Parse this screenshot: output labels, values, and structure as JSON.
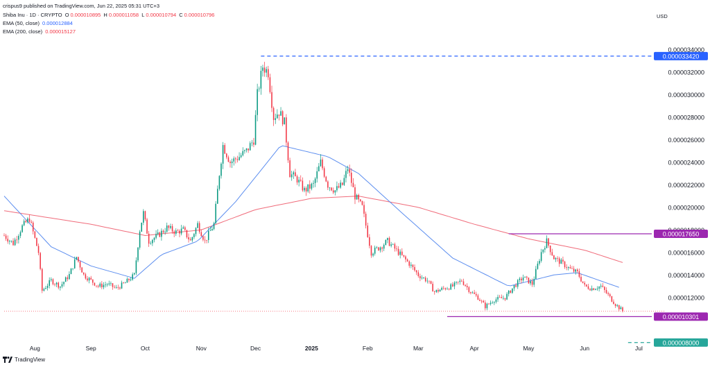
{
  "header": {
    "publisher": "crispus9 published on TradingView.com, Jun 22, 2025 05:31 UTC+3",
    "symbol": "Shiba Inu · 1D · CRYPTO",
    "ohlc": {
      "open_label": "O",
      "open": "0.000010895",
      "high_label": "H",
      "high": "0.000011058",
      "low_label": "L",
      "low": "0.000010794",
      "close_label": "C",
      "close": "0.000010796"
    },
    "ema50": {
      "label": "EMA (50, close)",
      "value": "0.000012884"
    },
    "ema200": {
      "label": "EMA (200, close)",
      "value": "0.000015127"
    },
    "currency": "USD"
  },
  "footer": {
    "brand": "TradingView"
  },
  "colors": {
    "up": "#089981",
    "down": "#f23645",
    "ema50": "#5b8def",
    "ema200": "#f06b7a",
    "level": "#9c27b0",
    "level_label_bg": "#9c27b0",
    "high_line": "#2962ff",
    "high_label_bg": "#2962ff",
    "low_line": "#26a69a",
    "low_label_bg": "#26a69a"
  },
  "chart_data": {
    "type": "candlestick",
    "title": "Shiba Inu · 1D · CRYPTO",
    "x_ticks": [
      "Aug",
      "Sep",
      "Oct",
      "Nov",
      "Dec",
      "2025",
      "Feb",
      "Mar",
      "Apr",
      "May",
      "Jun",
      "Jul"
    ],
    "x_tick_dates": [
      "2024-08-01",
      "2024-09-01",
      "2024-10-01",
      "2024-11-01",
      "2024-12-01",
      "2025-01-01",
      "2025-02-01",
      "2025-03-01",
      "2025-04-01",
      "2025-05-01",
      "2025-06-01",
      "2025-07-01"
    ],
    "y_ticks": [
      "0.000012000",
      "0.000014000",
      "0.000016000",
      "0.000018000",
      "0.000020000",
      "0.000022000",
      "0.000024000",
      "0.000026000",
      "0.000028000",
      "0.000030000",
      "0.000032000",
      "0.000034000"
    ],
    "y_tick_values": [
      1.2e-05,
      1.4e-05,
      1.6e-05,
      1.8e-05,
      2e-05,
      2.2e-05,
      2.4e-05,
      2.6e-05,
      2.8e-05,
      3e-05,
      3.2e-05,
      3.4e-05
    ],
    "ylim": [
      7.8e-06,
      3.52e-05
    ],
    "price_path": [
      [
        "2024-07-15",
        1.75e-05
      ],
      [
        "2024-07-20",
        1.68e-05
      ],
      [
        "2024-07-25",
        1.83e-05
      ],
      [
        "2024-07-29",
        1.9e-05
      ],
      [
        "2024-08-03",
        1.6e-05
      ],
      [
        "2024-08-05",
        1.26e-05
      ],
      [
        "2024-08-10",
        1.35e-05
      ],
      [
        "2024-08-15",
        1.3e-05
      ],
      [
        "2024-08-20",
        1.4e-05
      ],
      [
        "2024-08-24",
        1.56e-05
      ],
      [
        "2024-08-28",
        1.4e-05
      ],
      [
        "2024-09-05",
        1.3e-05
      ],
      [
        "2024-09-10",
        1.32e-05
      ],
      [
        "2024-09-15",
        1.28e-05
      ],
      [
        "2024-09-20",
        1.33e-05
      ],
      [
        "2024-09-25",
        1.4e-05
      ],
      [
        "2024-09-28",
        1.8e-05
      ],
      [
        "2024-09-30",
        1.95e-05
      ],
      [
        "2024-10-03",
        1.7e-05
      ],
      [
        "2024-10-08",
        1.75e-05
      ],
      [
        "2024-10-13",
        1.82e-05
      ],
      [
        "2024-10-18",
        1.78e-05
      ],
      [
        "2024-10-22",
        1.8e-05
      ],
      [
        "2024-10-26",
        1.7e-05
      ],
      [
        "2024-10-30",
        1.85e-05
      ],
      [
        "2024-11-03",
        1.7e-05
      ],
      [
        "2024-11-08",
        1.85e-05
      ],
      [
        "2024-11-11",
        2.3e-05
      ],
      [
        "2024-11-13",
        2.55e-05
      ],
      [
        "2024-11-17",
        2.4e-05
      ],
      [
        "2024-11-22",
        2.45e-05
      ],
      [
        "2024-11-26",
        2.5e-05
      ],
      [
        "2024-11-30",
        2.6e-05
      ],
      [
        "2024-12-02",
        3e-05
      ],
      [
        "2024-12-05",
        3.25e-05
      ],
      [
        "2024-12-08",
        3.2e-05
      ],
      [
        "2024-12-11",
        2.8e-05
      ],
      [
        "2024-12-14",
        2.85e-05
      ],
      [
        "2024-12-17",
        2.75e-05
      ],
      [
        "2024-12-20",
        2.3e-05
      ],
      [
        "2024-12-24",
        2.25e-05
      ],
      [
        "2024-12-28",
        2.15e-05
      ],
      [
        "2025-01-02",
        2.2e-05
      ],
      [
        "2025-01-06",
        2.4e-05
      ],
      [
        "2025-01-10",
        2.2e-05
      ],
      [
        "2025-01-14",
        2.15e-05
      ],
      [
        "2025-01-18",
        2.2e-05
      ],
      [
        "2025-01-21",
        2.35e-05
      ],
      [
        "2025-01-25",
        2.1e-05
      ],
      [
        "2025-01-29",
        2e-05
      ],
      [
        "2025-02-03",
        1.6e-05
      ],
      [
        "2025-02-08",
        1.65e-05
      ],
      [
        "2025-02-12",
        1.7e-05
      ],
      [
        "2025-02-18",
        1.6e-05
      ],
      [
        "2025-02-24",
        1.5e-05
      ],
      [
        "2025-03-01",
        1.4e-05
      ],
      [
        "2025-03-06",
        1.35e-05
      ],
      [
        "2025-03-10",
        1.25e-05
      ],
      [
        "2025-03-15",
        1.28e-05
      ],
      [
        "2025-03-20",
        1.3e-05
      ],
      [
        "2025-03-25",
        1.35e-05
      ],
      [
        "2025-03-30",
        1.25e-05
      ],
      [
        "2025-04-03",
        1.2e-05
      ],
      [
        "2025-04-07",
        1.12e-05
      ],
      [
        "2025-04-12",
        1.18e-05
      ],
      [
        "2025-04-18",
        1.2e-05
      ],
      [
        "2025-04-23",
        1.3e-05
      ],
      [
        "2025-04-28",
        1.38e-05
      ],
      [
        "2025-05-03",
        1.32e-05
      ],
      [
        "2025-05-08",
        1.6e-05
      ],
      [
        "2025-05-11",
        1.7e-05
      ],
      [
        "2025-05-15",
        1.55e-05
      ],
      [
        "2025-05-20",
        1.5e-05
      ],
      [
        "2025-05-24",
        1.45e-05
      ],
      [
        "2025-05-28",
        1.42e-05
      ],
      [
        "2025-06-01",
        1.3e-05
      ],
      [
        "2025-06-05",
        1.28e-05
      ],
      [
        "2025-06-10",
        1.3e-05
      ],
      [
        "2025-06-14",
        1.22e-05
      ],
      [
        "2025-06-18",
        1.14e-05
      ],
      [
        "2025-06-22",
        1.08e-05
      ]
    ],
    "ema50_path": [
      [
        "2024-07-15",
        2.1e-05
      ],
      [
        "2024-08-10",
        1.65e-05
      ],
      [
        "2024-09-01",
        1.48e-05
      ],
      [
        "2024-09-25",
        1.37e-05
      ],
      [
        "2024-10-10",
        1.58e-05
      ],
      [
        "2024-10-30",
        1.7e-05
      ],
      [
        "2024-11-20",
        2.05e-05
      ],
      [
        "2024-12-10",
        2.45e-05
      ],
      [
        "2024-12-15",
        2.55e-05
      ],
      [
        "2025-01-10",
        2.45e-05
      ],
      [
        "2025-01-27",
        2.3e-05
      ],
      [
        "2025-02-20",
        1.95e-05
      ],
      [
        "2025-03-20",
        1.55e-05
      ],
      [
        "2025-04-20",
        1.3e-05
      ],
      [
        "2025-05-15",
        1.4e-05
      ],
      [
        "2025-05-28",
        1.42e-05
      ],
      [
        "2025-06-20",
        1.29e-05
      ]
    ],
    "ema200_path": [
      [
        "2024-07-15",
        1.97e-05
      ],
      [
        "2024-09-01",
        1.85e-05
      ],
      [
        "2024-10-01",
        1.75e-05
      ],
      [
        "2024-11-01",
        1.8e-05
      ],
      [
        "2024-12-01",
        1.98e-05
      ],
      [
        "2025-01-01",
        2.08e-05
      ],
      [
        "2025-01-27",
        2.1e-05
      ],
      [
        "2025-03-01",
        2e-05
      ],
      [
        "2025-04-01",
        1.85e-05
      ],
      [
        "2025-05-01",
        1.72e-05
      ],
      [
        "2025-06-01",
        1.62e-05
      ],
      [
        "2025-06-22",
        1.51e-05
      ]
    ],
    "levels": [
      {
        "name": "high",
        "value": 3.342e-05,
        "label": "0.000033420",
        "from": "2024-12-04",
        "style": "dashed"
      },
      {
        "name": "resistance",
        "value": 1.765e-05,
        "label": "0.000017650",
        "from": "2025-04-20",
        "style": "solid"
      },
      {
        "name": "support",
        "value": 1.0301e-05,
        "label": "0.000010301",
        "from": "2025-03-17",
        "style": "solid"
      },
      {
        "name": "target",
        "value": 8e-06,
        "label": "0.000008000",
        "from": "2025-06-25",
        "style": "dashed"
      }
    ],
    "current_price": 1.0796e-05
  }
}
